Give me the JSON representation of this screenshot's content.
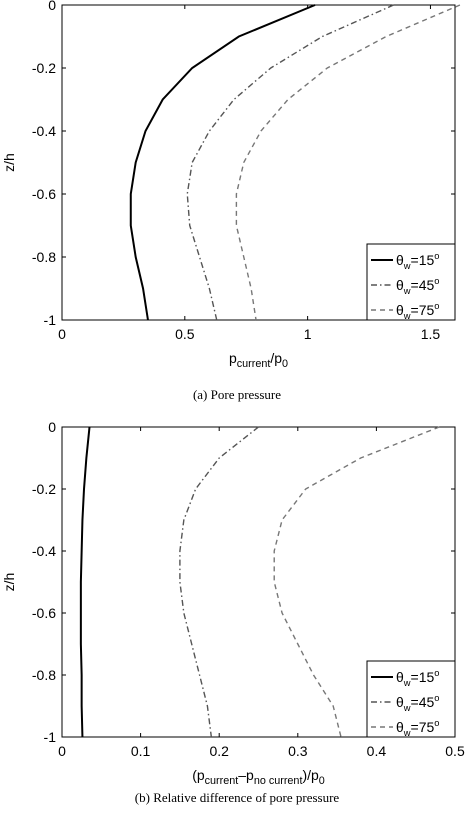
{
  "chart_data": [
    {
      "type": "line",
      "caption": "(a) Pore pressure",
      "x_label": [
        {
          "text": "p"
        },
        {
          "text": "current",
          "sub": true
        },
        {
          "text": "/p"
        },
        {
          "text": "0",
          "sub": true
        }
      ],
      "y_label": "z/h",
      "z": [
        0,
        -0.1,
        -0.2,
        -0.3,
        -0.4,
        -0.5,
        -0.6,
        -0.7,
        -0.8,
        -0.9,
        -1
      ],
      "xlim": [
        0,
        1.6
      ],
      "xticks": [
        0,
        0.5,
        1,
        1.5
      ],
      "ylim": [
        -1,
        0
      ],
      "yticks": [
        -1,
        -0.8,
        -0.6,
        -0.4,
        -0.2,
        0
      ],
      "legend": "lower right",
      "series": [
        {
          "name": [
            {
              "text": "θ"
            },
            {
              "text": "w",
              "sub": true
            },
            {
              "text": "=15"
            },
            {
              "text": "o",
              "sup": true
            }
          ],
          "color": "#000000",
          "dash": "solid",
          "values": [
            1.03,
            0.72,
            0.53,
            0.41,
            0.34,
            0.3,
            0.28,
            0.28,
            0.3,
            0.33,
            0.35
          ]
        },
        {
          "name": [
            {
              "text": "θ"
            },
            {
              "text": "w",
              "sub": true
            },
            {
              "text": "=45"
            },
            {
              "text": "o",
              "sup": true
            }
          ],
          "color": "#555555",
          "dash": "dashdot",
          "values": [
            1.35,
            1.06,
            0.85,
            0.7,
            0.6,
            0.53,
            0.51,
            0.52,
            0.56,
            0.6,
            0.63
          ]
        },
        {
          "name": [
            {
              "text": "θ"
            },
            {
              "text": "w",
              "sub": true
            },
            {
              "text": "=75"
            },
            {
              "text": "o",
              "sup": true
            }
          ],
          "color": "#777777",
          "dash": "dash",
          "values": [
            1.62,
            1.32,
            1.08,
            0.92,
            0.81,
            0.74,
            0.71,
            0.71,
            0.74,
            0.77,
            0.79
          ]
        }
      ]
    },
    {
      "type": "line",
      "caption": "(b) Relative difference of pore pressure",
      "x_label": [
        {
          "text": "(p"
        },
        {
          "text": "current",
          "sub": true
        },
        {
          "text": "–p"
        },
        {
          "text": "no current",
          "sub": true
        },
        {
          "text": ")/p"
        },
        {
          "text": "0",
          "sub": true
        }
      ],
      "y_label": "z/h",
      "z": [
        0,
        -0.1,
        -0.2,
        -0.3,
        -0.4,
        -0.5,
        -0.6,
        -0.7,
        -0.8,
        -0.9,
        -1
      ],
      "xlim": [
        0,
        0.5
      ],
      "xticks": [
        0,
        0.1,
        0.2,
        0.3,
        0.4,
        0.5
      ],
      "ylim": [
        -1,
        0
      ],
      "yticks": [
        -1,
        -0.8,
        -0.6,
        -0.4,
        -0.2,
        0
      ],
      "legend": "lower right",
      "series": [
        {
          "name": [
            {
              "text": "θ"
            },
            {
              "text": "w",
              "sub": true
            },
            {
              "text": "=15"
            },
            {
              "text": "o",
              "sup": true
            }
          ],
          "color": "#000000",
          "dash": "solid",
          "values": [
            0.035,
            0.031,
            0.028,
            0.026,
            0.025,
            0.024,
            0.024,
            0.024,
            0.025,
            0.025,
            0.026
          ]
        },
        {
          "name": [
            {
              "text": "θ"
            },
            {
              "text": "w",
              "sub": true
            },
            {
              "text": "=45"
            },
            {
              "text": "o",
              "sup": true
            }
          ],
          "color": "#555555",
          "dash": "dashdot",
          "values": [
            0.25,
            0.2,
            0.17,
            0.155,
            0.15,
            0.15,
            0.155,
            0.165,
            0.175,
            0.185,
            0.19
          ]
        },
        {
          "name": [
            {
              "text": "θ"
            },
            {
              "text": "w",
              "sub": true
            },
            {
              "text": "=75"
            },
            {
              "text": "o",
              "sup": true
            }
          ],
          "color": "#777777",
          "dash": "dash",
          "values": [
            0.48,
            0.38,
            0.31,
            0.28,
            0.27,
            0.27,
            0.28,
            0.3,
            0.32,
            0.345,
            0.355
          ]
        }
      ]
    }
  ]
}
